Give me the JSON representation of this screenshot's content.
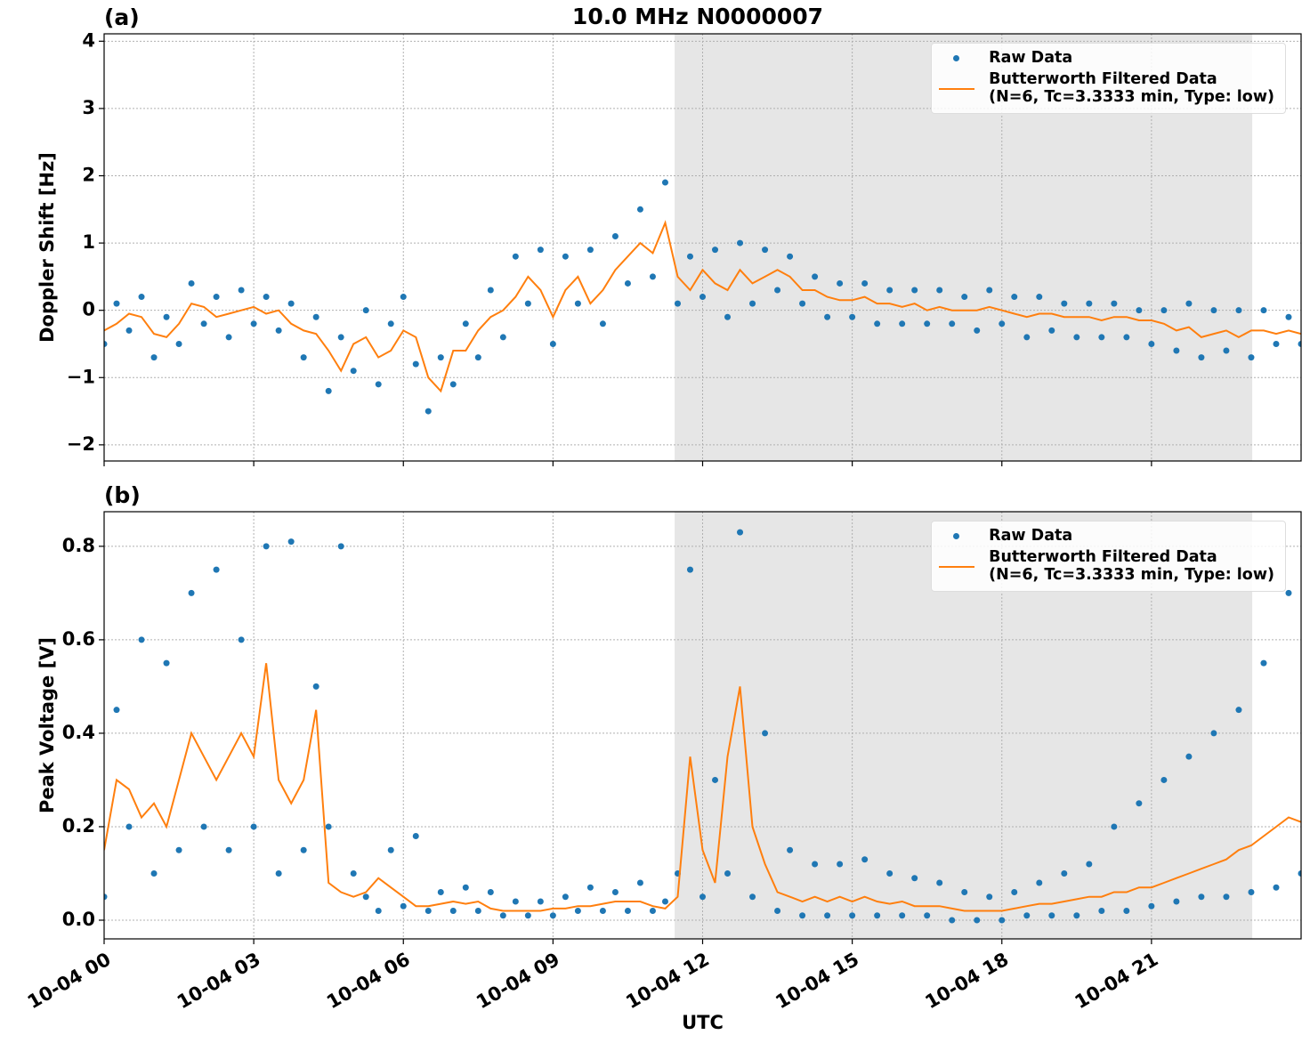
{
  "title": "10.0 MHz N0000007",
  "chart_data": [
    {
      "type": "scatter-line",
      "panel_label": "(a)",
      "y_label": "Doppler Shift [Hz]",
      "legend": "upper right",
      "grid": true,
      "xlim": [
        0,
        24
      ],
      "ylim": [
        -2.24,
        4.11
      ],
      "yticks": [
        {
          "value": -2,
          "label": "−2"
        },
        {
          "value": -1,
          "label": "−1"
        },
        0,
        1,
        2,
        3,
        4
      ],
      "span": [
        11.44,
        23.02
      ],
      "x": [
        0,
        0.25,
        0.5,
        0.75,
        1,
        1.25,
        1.5,
        1.75,
        2,
        2.25,
        2.5,
        2.75,
        3,
        3.25,
        3.5,
        3.75,
        4,
        4.25,
        4.5,
        4.75,
        5,
        5.25,
        5.5,
        5.75,
        6,
        6.25,
        6.5,
        6.75,
        7,
        7.25,
        7.5,
        7.75,
        8,
        8.25,
        8.5,
        8.75,
        9,
        9.25,
        9.5,
        9.75,
        10,
        10.25,
        10.5,
        10.75,
        11,
        11.25,
        11.5,
        11.75,
        12,
        12.25,
        12.5,
        12.75,
        13,
        13.25,
        13.5,
        13.75,
        14,
        14.25,
        14.5,
        14.75,
        15,
        15.25,
        15.5,
        15.75,
        16,
        16.25,
        16.5,
        16.75,
        17,
        17.25,
        17.5,
        17.75,
        18,
        18.25,
        18.5,
        18.75,
        19,
        19.25,
        19.5,
        19.75,
        20,
        20.25,
        20.5,
        20.75,
        21,
        21.25,
        21.5,
        21.75,
        22,
        22.25,
        22.5,
        22.75,
        23,
        23.25,
        23.5,
        23.75,
        24
      ],
      "series": [
        {
          "name": "Raw Data",
          "color": "#1f77b4",
          "marker": "point",
          "values": [
            -0.5,
            0.1,
            -0.3,
            0.2,
            -0.7,
            -0.1,
            -0.5,
            0.4,
            -0.2,
            0.2,
            -0.4,
            0.3,
            -0.2,
            0.2,
            -0.3,
            0.1,
            -0.7,
            -0.1,
            -1.2,
            -0.4,
            -0.9,
            0.0,
            -1.1,
            -0.2,
            0.2,
            -0.8,
            -1.5,
            -0.7,
            -1.1,
            -0.2,
            -0.7,
            0.3,
            -0.4,
            0.8,
            0.1,
            0.9,
            -0.5,
            0.8,
            0.1,
            0.9,
            -0.2,
            1.1,
            0.4,
            1.5,
            0.5,
            1.9,
            0.1,
            0.8,
            0.2,
            0.9,
            -0.1,
            1.0,
            0.1,
            0.9,
            0.3,
            0.8,
            0.1,
            0.5,
            -0.1,
            0.4,
            -0.1,
            0.4,
            -0.2,
            0.3,
            -0.2,
            0.3,
            -0.2,
            0.3,
            -0.2,
            0.2,
            -0.3,
            0.3,
            -0.2,
            0.2,
            -0.4,
            0.2,
            -0.3,
            0.1,
            -0.4,
            0.1,
            -0.4,
            0.1,
            -0.4,
            0.0,
            -0.5,
            0.0,
            -0.6,
            0.1,
            -0.7,
            0.0,
            -0.6,
            0.0,
            -0.7,
            0.0,
            -0.5,
            -0.1,
            -0.5
          ]
        },
        {
          "name": "Butterworth Filtered Data\n(N=6, Tc=3.3333 min, Type: low)",
          "color": "#ff7f0e",
          "marker": "line",
          "values": [
            -0.3,
            -0.2,
            -0.05,
            -0.1,
            -0.35,
            -0.4,
            -0.2,
            0.1,
            0.05,
            -0.1,
            -0.05,
            0.0,
            0.05,
            -0.05,
            0.0,
            -0.2,
            -0.3,
            -0.35,
            -0.6,
            -0.9,
            -0.5,
            -0.4,
            -0.7,
            -0.6,
            -0.3,
            -0.4,
            -1.0,
            -1.2,
            -0.6,
            -0.6,
            -0.3,
            -0.1,
            0.0,
            0.2,
            0.5,
            0.3,
            -0.1,
            0.3,
            0.5,
            0.1,
            0.3,
            0.6,
            0.8,
            1.0,
            0.85,
            1.3,
            0.5,
            0.3,
            0.6,
            0.4,
            0.3,
            0.6,
            0.4,
            0.5,
            0.6,
            0.5,
            0.3,
            0.3,
            0.2,
            0.15,
            0.15,
            0.2,
            0.1,
            0.1,
            0.05,
            0.1,
            0.0,
            0.05,
            0.0,
            0.0,
            0.0,
            0.05,
            0.0,
            -0.05,
            -0.1,
            -0.05,
            -0.05,
            -0.1,
            -0.1,
            -0.1,
            -0.15,
            -0.1,
            -0.1,
            -0.15,
            -0.15,
            -0.2,
            -0.3,
            -0.25,
            -0.4,
            -0.35,
            -0.3,
            -0.4,
            -0.3,
            -0.3,
            -0.35,
            -0.3,
            -0.35
          ]
        }
      ]
    },
    {
      "type": "scatter-line",
      "panel_label": "(b)",
      "y_label": "Peak Voltage [V]",
      "x_label": "UTC",
      "legend": "upper right",
      "grid": true,
      "xlim": [
        0,
        24
      ],
      "ylim": [
        -0.04,
        0.874
      ],
      "xticks": [
        {
          "value": 0,
          "label": "10-04 00"
        },
        {
          "value": 3,
          "label": "10-04 03"
        },
        {
          "value": 6,
          "label": "10-04 06"
        },
        {
          "value": 9,
          "label": "10-04 09"
        },
        {
          "value": 12,
          "label": "10-04 12"
        },
        {
          "value": 15,
          "label": "10-04 15"
        },
        {
          "value": 18,
          "label": "10-04 18"
        },
        {
          "value": 21,
          "label": "10-04 21"
        }
      ],
      "yticks": [
        {
          "value": 0,
          "label": "0.0"
        },
        0.2,
        0.4,
        0.6,
        0.8
      ],
      "span": [
        11.44,
        23.02
      ],
      "x": [
        0,
        0.25,
        0.5,
        0.75,
        1,
        1.25,
        1.5,
        1.75,
        2,
        2.25,
        2.5,
        2.75,
        3,
        3.25,
        3.5,
        3.75,
        4,
        4.25,
        4.5,
        4.75,
        5,
        5.25,
        5.5,
        5.75,
        6,
        6.25,
        6.5,
        6.75,
        7,
        7.25,
        7.5,
        7.75,
        8,
        8.25,
        8.5,
        8.75,
        9,
        9.25,
        9.5,
        9.75,
        10,
        10.25,
        10.5,
        10.75,
        11,
        11.25,
        11.5,
        11.75,
        12,
        12.25,
        12.5,
        12.75,
        13,
        13.25,
        13.5,
        13.75,
        14,
        14.25,
        14.5,
        14.75,
        15,
        15.25,
        15.5,
        15.75,
        16,
        16.25,
        16.5,
        16.75,
        17,
        17.25,
        17.5,
        17.75,
        18,
        18.25,
        18.5,
        18.75,
        19,
        19.25,
        19.5,
        19.75,
        20,
        20.25,
        20.5,
        20.75,
        21,
        21.25,
        21.5,
        21.75,
        22,
        22.25,
        22.5,
        22.75,
        23,
        23.25,
        23.5,
        23.75,
        24
      ],
      "series": [
        {
          "name": "Raw Data",
          "color": "#1f77b4",
          "marker": "point",
          "values": [
            0.05,
            0.45,
            0.2,
            0.6,
            0.1,
            0.55,
            0.15,
            0.7,
            0.2,
            0.75,
            0.15,
            0.6,
            0.2,
            0.8,
            0.1,
            0.81,
            0.15,
            0.5,
            0.2,
            0.8,
            0.1,
            0.05,
            0.02,
            0.15,
            0.03,
            0.18,
            0.02,
            0.06,
            0.02,
            0.07,
            0.02,
            0.06,
            0.01,
            0.04,
            0.01,
            0.04,
            0.01,
            0.05,
            0.02,
            0.07,
            0.02,
            0.06,
            0.02,
            0.08,
            0.02,
            0.04,
            0.1,
            0.75,
            0.05,
            0.3,
            0.1,
            0.83,
            0.05,
            0.4,
            0.02,
            0.15,
            0.01,
            0.12,
            0.01,
            0.12,
            0.01,
            0.13,
            0.01,
            0.1,
            0.01,
            0.09,
            0.01,
            0.08,
            0.0,
            0.06,
            0.0,
            0.05,
            0.0,
            0.06,
            0.01,
            0.08,
            0.01,
            0.1,
            0.01,
            0.12,
            0.02,
            0.2,
            0.02,
            0.25,
            0.03,
            0.3,
            0.04,
            0.35,
            0.05,
            0.4,
            0.05,
            0.45,
            0.06,
            0.55,
            0.07,
            0.7,
            0.1
          ]
        },
        {
          "name": "Butterworth Filtered Data\n(N=6, Tc=3.3333 min, Type: low)",
          "color": "#ff7f0e",
          "marker": "line",
          "values": [
            0.15,
            0.3,
            0.28,
            0.22,
            0.25,
            0.2,
            0.3,
            0.4,
            0.35,
            0.3,
            0.35,
            0.4,
            0.35,
            0.55,
            0.3,
            0.25,
            0.3,
            0.45,
            0.08,
            0.06,
            0.05,
            0.06,
            0.09,
            0.07,
            0.05,
            0.03,
            0.03,
            0.035,
            0.04,
            0.035,
            0.04,
            0.025,
            0.02,
            0.02,
            0.02,
            0.02,
            0.025,
            0.025,
            0.03,
            0.03,
            0.035,
            0.04,
            0.04,
            0.04,
            0.03,
            0.025,
            0.05,
            0.35,
            0.15,
            0.08,
            0.35,
            0.5,
            0.2,
            0.12,
            0.06,
            0.05,
            0.04,
            0.05,
            0.04,
            0.05,
            0.04,
            0.05,
            0.04,
            0.035,
            0.04,
            0.03,
            0.03,
            0.03,
            0.025,
            0.02,
            0.02,
            0.02,
            0.02,
            0.025,
            0.03,
            0.035,
            0.035,
            0.04,
            0.045,
            0.05,
            0.05,
            0.06,
            0.06,
            0.07,
            0.07,
            0.08,
            0.09,
            0.1,
            0.11,
            0.12,
            0.13,
            0.15,
            0.16,
            0.18,
            0.2,
            0.22,
            0.21
          ]
        }
      ]
    }
  ]
}
